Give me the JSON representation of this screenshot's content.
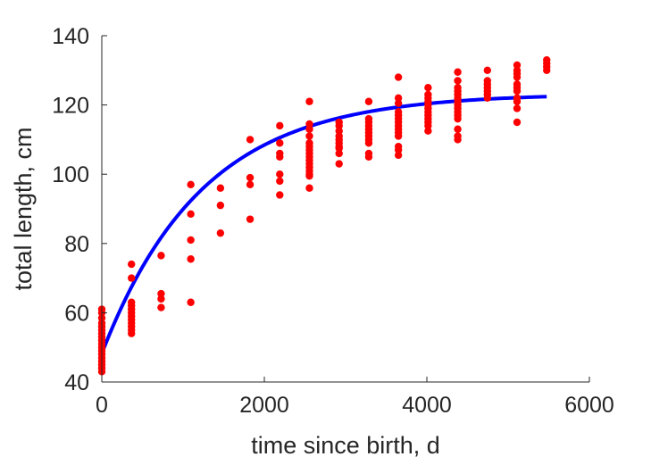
{
  "chart_data": {
    "type": "scatter",
    "title": "",
    "xlabel": "time since birth, d",
    "ylabel": "total length, cm",
    "xlim": [
      0,
      6000
    ],
    "ylim": [
      40,
      140
    ],
    "xticks": [
      0,
      2000,
      4000,
      6000
    ],
    "yticks": [
      40,
      60,
      80,
      100,
      120,
      140
    ],
    "xtick_labels": [
      "0",
      "2000",
      "4000",
      "6000"
    ],
    "ytick_labels": [
      "40",
      "60",
      "80",
      "100",
      "120",
      "140"
    ],
    "grid": false,
    "legend": "none",
    "series": [
      {
        "kind": "scatter",
        "color": "#ff0000",
        "points": [
          [
            0,
            61
          ],
          [
            0,
            60
          ],
          [
            0,
            58.5
          ],
          [
            0,
            57
          ],
          [
            0,
            56
          ],
          [
            0,
            55
          ],
          [
            0,
            54
          ],
          [
            0,
            53
          ],
          [
            0,
            52
          ],
          [
            0,
            51
          ],
          [
            0,
            50
          ],
          [
            0,
            49
          ],
          [
            0,
            48
          ],
          [
            0,
            47
          ],
          [
            0,
            46
          ],
          [
            0,
            45
          ],
          [
            0,
            44
          ],
          [
            0,
            43
          ],
          [
            365,
            74
          ],
          [
            365,
            70
          ],
          [
            365,
            63
          ],
          [
            365,
            62
          ],
          [
            365,
            61
          ],
          [
            365,
            60
          ],
          [
            365,
            59
          ],
          [
            365,
            58
          ],
          [
            365,
            57
          ],
          [
            365,
            56
          ],
          [
            365,
            55
          ],
          [
            365,
            54
          ],
          [
            730,
            76.5
          ],
          [
            730,
            65.5
          ],
          [
            730,
            64
          ],
          [
            730,
            61.5
          ],
          [
            1095,
            97
          ],
          [
            1095,
            88.5
          ],
          [
            1095,
            81
          ],
          [
            1095,
            75.5
          ],
          [
            1095,
            63
          ],
          [
            1460,
            96
          ],
          [
            1460,
            91
          ],
          [
            1460,
            83
          ],
          [
            1825,
            110
          ],
          [
            1825,
            99
          ],
          [
            1825,
            97
          ],
          [
            1825,
            87
          ],
          [
            2190,
            114
          ],
          [
            2190,
            109
          ],
          [
            2190,
            106
          ],
          [
            2190,
            105
          ],
          [
            2190,
            100
          ],
          [
            2190,
            98
          ],
          [
            2190,
            94
          ],
          [
            2555,
            121
          ],
          [
            2555,
            114.5
          ],
          [
            2555,
            113
          ],
          [
            2555,
            111
          ],
          [
            2555,
            109
          ],
          [
            2555,
            108
          ],
          [
            2555,
            107
          ],
          [
            2555,
            106
          ],
          [
            2555,
            105
          ],
          [
            2555,
            104
          ],
          [
            2555,
            103
          ],
          [
            2555,
            102
          ],
          [
            2555,
            101
          ],
          [
            2555,
            100
          ],
          [
            2555,
            99.5
          ],
          [
            2555,
            96
          ],
          [
            2920,
            115
          ],
          [
            2920,
            114
          ],
          [
            2920,
            112.5
          ],
          [
            2920,
            111
          ],
          [
            2920,
            110
          ],
          [
            2920,
            109
          ],
          [
            2920,
            108
          ],
          [
            2920,
            107.5
          ],
          [
            2920,
            106
          ],
          [
            2920,
            103
          ],
          [
            3285,
            121
          ],
          [
            3285,
            116
          ],
          [
            3285,
            115
          ],
          [
            3285,
            114
          ],
          [
            3285,
            113
          ],
          [
            3285,
            112
          ],
          [
            3285,
            111
          ],
          [
            3285,
            110
          ],
          [
            3285,
            109
          ],
          [
            3285,
            106
          ],
          [
            3285,
            105
          ],
          [
            3650,
            128
          ],
          [
            3650,
            122
          ],
          [
            3650,
            120.5
          ],
          [
            3650,
            118
          ],
          [
            3650,
            117
          ],
          [
            3650,
            116
          ],
          [
            3650,
            115
          ],
          [
            3650,
            114
          ],
          [
            3650,
            113
          ],
          [
            3650,
            112
          ],
          [
            3650,
            111
          ],
          [
            3650,
            108
          ],
          [
            3650,
            107
          ],
          [
            3650,
            105.5
          ],
          [
            4015,
            125
          ],
          [
            4015,
            123
          ],
          [
            4015,
            122
          ],
          [
            4015,
            121
          ],
          [
            4015,
            120
          ],
          [
            4015,
            119
          ],
          [
            4015,
            118
          ],
          [
            4015,
            117
          ],
          [
            4015,
            116
          ],
          [
            4015,
            115
          ],
          [
            4015,
            114
          ],
          [
            4015,
            112.5
          ],
          [
            4380,
            129.5
          ],
          [
            4380,
            127
          ],
          [
            4380,
            125
          ],
          [
            4380,
            124
          ],
          [
            4380,
            123
          ],
          [
            4380,
            122
          ],
          [
            4380,
            121
          ],
          [
            4380,
            120
          ],
          [
            4380,
            119
          ],
          [
            4380,
            118
          ],
          [
            4380,
            117
          ],
          [
            4380,
            116
          ],
          [
            4380,
            113
          ],
          [
            4380,
            111
          ],
          [
            4380,
            110
          ],
          [
            4745,
            130
          ],
          [
            4745,
            127
          ],
          [
            4745,
            126
          ],
          [
            4745,
            125
          ],
          [
            4745,
            124
          ],
          [
            4745,
            123
          ],
          [
            4745,
            122
          ],
          [
            5110,
            131.5
          ],
          [
            5110,
            130
          ],
          [
            5110,
            129
          ],
          [
            5110,
            128
          ],
          [
            5110,
            126
          ],
          [
            5110,
            125
          ],
          [
            5110,
            124
          ],
          [
            5110,
            122
          ],
          [
            5110,
            121
          ],
          [
            5110,
            119
          ],
          [
            5110,
            115
          ],
          [
            5475,
            133
          ],
          [
            5475,
            132
          ],
          [
            5475,
            131
          ],
          [
            5475,
            130
          ]
        ]
      },
      {
        "kind": "line",
        "color": "#0000ff",
        "model": "von Bertalanffy fit",
        "params": {
          "Linf": 123.3,
          "L0": 48.2,
          "k": 0.00081
        },
        "x_range": [
          0,
          5475
        ]
      }
    ]
  }
}
